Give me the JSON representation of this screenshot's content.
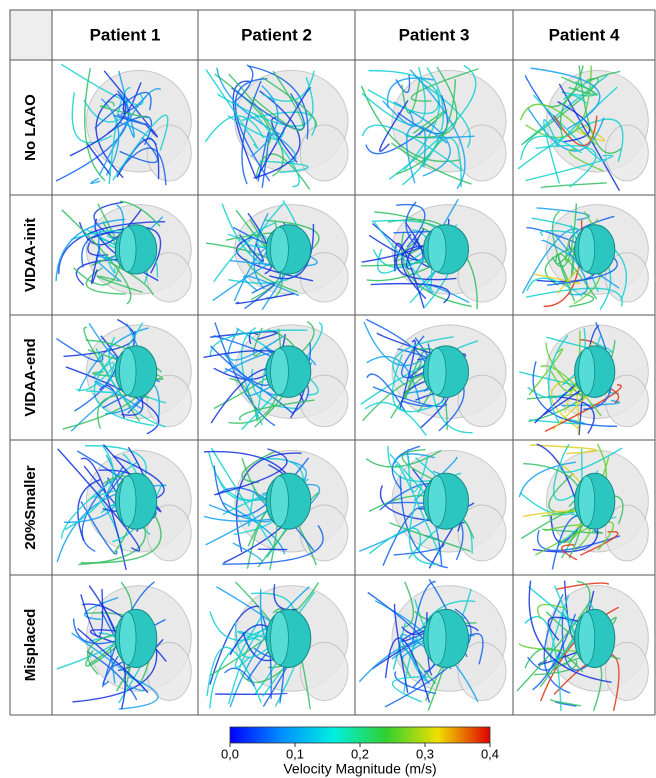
{
  "table": {
    "columns": [
      "Patient 1",
      "Patient 2",
      "Patient 3",
      "Patient 4"
    ],
    "rows": [
      "No LAAO",
      "VIDAA-init",
      "VIDAA-end",
      "20%Smaller",
      "Misplaced"
    ]
  },
  "colorbar": {
    "label": "Velocity Magnitude (m/s)",
    "lim": [
      0,
      0.4
    ],
    "ticks": [
      {
        "value": 0,
        "label": "0,0"
      },
      {
        "value": 0.1,
        "label": "0,1"
      },
      {
        "value": 0.2,
        "label": "0,2"
      },
      {
        "value": 0.3,
        "label": "0,3"
      },
      {
        "value": 0.4,
        "label": "0,4"
      }
    ]
  }
}
